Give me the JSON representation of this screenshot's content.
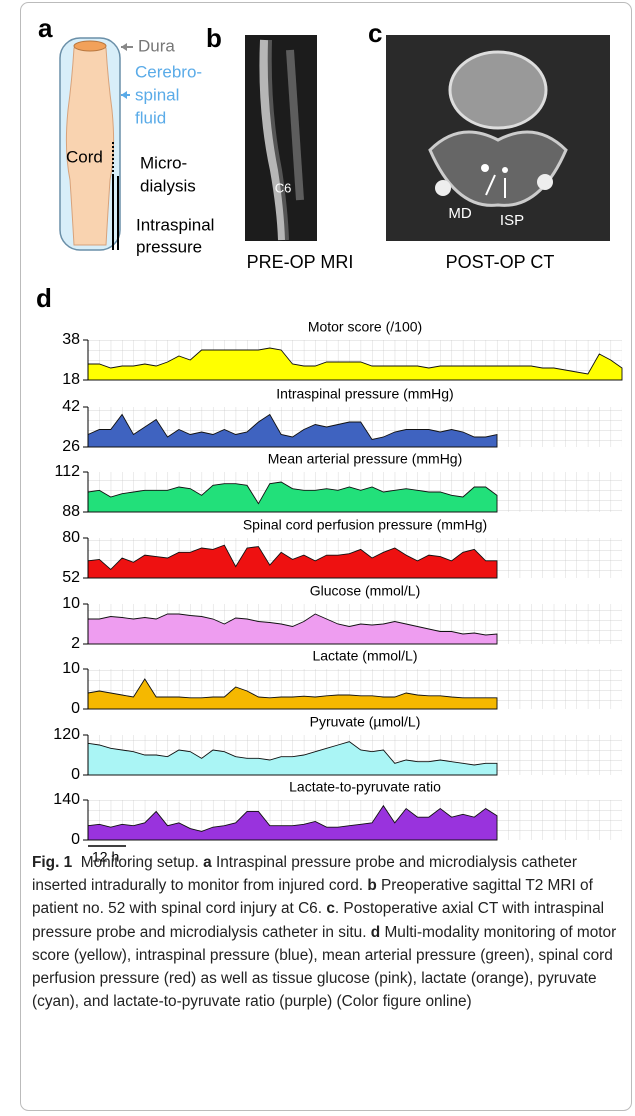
{
  "panels": {
    "a": {
      "letter": "a",
      "dura": "Dura",
      "csf": [
        "Cerebro-",
        "spinal",
        "fluid"
      ],
      "cord": "Cord",
      "microdialysis": [
        "Micro-",
        "dialysis"
      ],
      "isp": [
        "Intraspinal",
        "pressure"
      ]
    },
    "b": {
      "letter": "b",
      "level": "C6",
      "caption": "PRE-OP MRI"
    },
    "c": {
      "letter": "c",
      "md": "MD",
      "isp": "ISP",
      "caption": "POST-OP CT"
    },
    "d": {
      "letter": "d",
      "scale_bar": "12 h"
    }
  },
  "chart_data": [
    {
      "type": "area",
      "title": "Motor score (/100)",
      "color": "#ffff00",
      "ylim": [
        18,
        38
      ],
      "yticks": [
        18,
        38
      ],
      "grid": true,
      "values": [
        26,
        26,
        24,
        25,
        25,
        26,
        25,
        27,
        30,
        28,
        33,
        33,
        33,
        33,
        33,
        33,
        34,
        33,
        26,
        25,
        25,
        27,
        27,
        27,
        27,
        25,
        25,
        25,
        25,
        25,
        24,
        25,
        25,
        25,
        25,
        25,
        25,
        25,
        25,
        25,
        24,
        24,
        23,
        22,
        21,
        31,
        28,
        24
      ]
    },
    {
      "type": "area",
      "title": "Intraspinal pressure (mmHg)",
      "color": "#3f63c0",
      "ylim": [
        26,
        42
      ],
      "yticks": [
        26,
        42
      ],
      "grid": true,
      "values": [
        31,
        33,
        33,
        39,
        31,
        34,
        37,
        30,
        33,
        31,
        32,
        31,
        33,
        31,
        32,
        36,
        39,
        31,
        30,
        33,
        35,
        34,
        35,
        36,
        36,
        29,
        30,
        32,
        33,
        33,
        33,
        32,
        33,
        32,
        30,
        30,
        31
      ]
    },
    {
      "type": "area",
      "title": "Mean arterial pressure (mmHg)",
      "color": "#22e07a",
      "ylim": [
        88,
        112
      ],
      "yticks": [
        88,
        112
      ],
      "grid": true,
      "values": [
        100,
        101,
        97,
        99,
        100,
        101,
        101,
        101,
        103,
        102,
        98,
        104,
        105,
        105,
        104,
        93,
        105,
        106,
        102,
        101,
        101,
        102,
        101,
        103,
        101,
        103,
        100,
        101,
        102,
        101,
        100,
        100,
        98,
        97,
        103,
        103,
        98
      ]
    },
    {
      "type": "area",
      "title": "Spinal cord perfusion pressure (mmHg)",
      "color": "#ee1111",
      "ylim": [
        52,
        80
      ],
      "yticks": [
        52,
        80
      ],
      "grid": true,
      "values": [
        64,
        65,
        58,
        66,
        63,
        68,
        67,
        66,
        70,
        70,
        73,
        72,
        75,
        60,
        73,
        74,
        61,
        70,
        65,
        68,
        64,
        68,
        68,
        69,
        72,
        66,
        70,
        73,
        68,
        64,
        68,
        67,
        64,
        70,
        72,
        64,
        64
      ]
    },
    {
      "type": "area",
      "title": "Glucose (mmol/L)",
      "color": "#ee9df0",
      "ylim": [
        2,
        10
      ],
      "yticks": [
        2,
        10
      ],
      "grid": true,
      "values": [
        7,
        7,
        7.5,
        7.3,
        7,
        7.3,
        7,
        8,
        8,
        7.7,
        7.5,
        7,
        6,
        7.2,
        7,
        6.5,
        6.3,
        6,
        5.5,
        6.5,
        8,
        7,
        6,
        5.5,
        6,
        5.8,
        6,
        6.5,
        6,
        5.5,
        5,
        4.5,
        4.5,
        4,
        4.2,
        3.8,
        4
      ]
    },
    {
      "type": "area",
      "title": "Lactate (mmol/L)",
      "color": "#f5b800",
      "ylim": [
        0,
        10
      ],
      "yticks": [
        0,
        10
      ],
      "grid": true,
      "values": [
        4,
        4.5,
        4,
        3.5,
        3,
        7.5,
        3,
        3,
        3,
        2.8,
        2.8,
        3,
        3,
        5.5,
        4.5,
        3,
        2.8,
        3,
        3,
        3.2,
        3,
        3.3,
        3.5,
        3.5,
        3.3,
        3.3,
        3,
        3,
        4,
        3.5,
        3.3,
        3.3,
        3,
        2.8,
        2.8,
        2.8,
        2.8
      ]
    },
    {
      "type": "area",
      "title": "Pyruvate (µmol/L)",
      "color": "#aaf5f5",
      "ylim": [
        0,
        120
      ],
      "yticks": [
        0,
        120
      ],
      "grid": true,
      "values": [
        95,
        90,
        80,
        75,
        70,
        60,
        60,
        55,
        75,
        70,
        50,
        75,
        70,
        55,
        50,
        50,
        45,
        55,
        55,
        60,
        70,
        80,
        90,
        100,
        75,
        70,
        75,
        35,
        45,
        40,
        40,
        45,
        40,
        35,
        30,
        35,
        35
      ]
    },
    {
      "type": "area",
      "title": "Lactate-to-pyruvate ratio",
      "color": "#9933dd",
      "ylim": [
        0,
        140
      ],
      "yticks": [
        0,
        140
      ],
      "grid": true,
      "values": [
        50,
        55,
        45,
        55,
        50,
        60,
        100,
        50,
        60,
        40,
        30,
        45,
        50,
        60,
        100,
        100,
        50,
        50,
        50,
        55,
        65,
        45,
        45,
        50,
        55,
        60,
        120,
        60,
        110,
        80,
        80,
        110,
        80,
        90,
        80,
        110,
        85
      ]
    }
  ],
  "caption": {
    "label": "Fig. 1",
    "title": "Monitoring setup.",
    "parts": [
      {
        "letter": "a",
        "text": "Intraspinal pressure probe and microdialysis catheter inserted intradurally to monitor from injured cord."
      },
      {
        "letter": "b",
        "text": "Preoperative sagittal T2 MRI of patient no. 52 with spinal cord injury at C6."
      },
      {
        "letter": "c",
        "text": ". Postoperative axial CT with intraspinal pressure probe and microdialysis catheter in situ."
      },
      {
        "letter": "d",
        "text": "Multi-modality monitoring of motor score (yellow), intraspinal pressure (blue), mean arterial pressure (green), spinal cord perfusion pressure (red) as well as tissue glucose (pink), lactate (orange), pyruvate (cyan), and lactate-to-pyruvate ratio (purple) (Color figure online)"
      }
    ]
  }
}
